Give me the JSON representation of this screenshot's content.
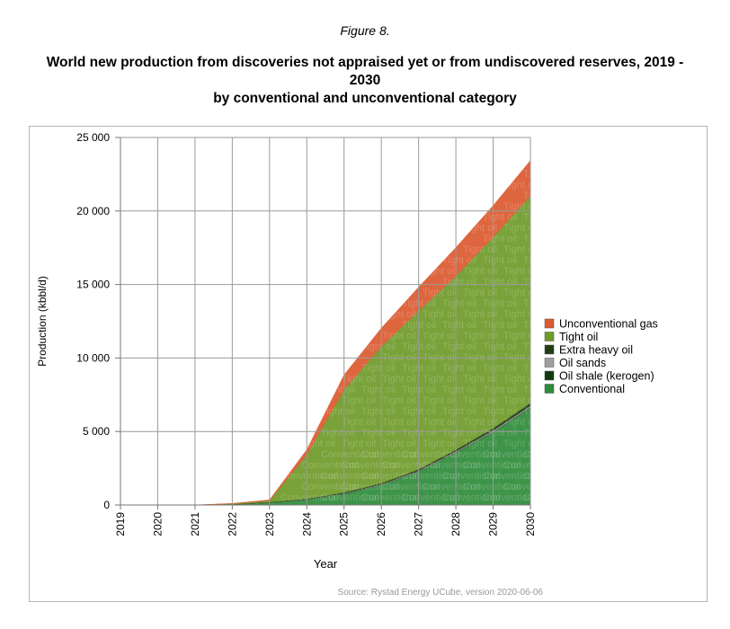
{
  "figure_label": "Figure 8.",
  "title_lines": [
    "World new production from discoveries not appraised yet or from undiscovered reserves, 2019 -",
    "2030",
    "by conventional and unconventional category"
  ],
  "source": "Source: Rystad Energy UCube, version 2020-06-06",
  "watermark": {
    "text": "Tight oil",
    "secondary": "Conventional"
  },
  "chart_data": {
    "type": "area",
    "stacked": true,
    "title": "World new production from discoveries not appraised yet or from undiscovered reserves, 2019 - 2030 by conventional and unconventional category",
    "xlabel": "Year",
    "ylabel": "Production (kbbl/d)",
    "x": [
      "2019",
      "2020",
      "2021",
      "2022",
      "2023",
      "2024",
      "2025",
      "2026",
      "2027",
      "2028",
      "2029",
      "2030"
    ],
    "ylim": [
      0,
      25000
    ],
    "yticks": [
      0,
      5000,
      10000,
      15000,
      20000,
      25000
    ],
    "ytick_labels": [
      "0",
      "5 000",
      "10 000",
      "15 000",
      "20 000",
      "25 000"
    ],
    "grid": true,
    "legend_position": "right",
    "series": [
      {
        "name": "Conventional",
        "color": "#2e8b3a",
        "values": [
          0,
          0,
          0,
          30,
          150,
          350,
          750,
          1350,
          2250,
          3550,
          4950,
          6600
        ]
      },
      {
        "name": "Oil shale (kerogen)",
        "color": "#0c3b10",
        "values": [
          0,
          0,
          0,
          2,
          5,
          8,
          12,
          15,
          20,
          25,
          30,
          35
        ]
      },
      {
        "name": "Oil sands",
        "color": "#9e9e9e",
        "values": [
          0,
          0,
          0,
          5,
          15,
          20,
          30,
          40,
          50,
          60,
          80,
          100
        ]
      },
      {
        "name": "Extra heavy oil",
        "color": "#1e3d14",
        "values": [
          0,
          0,
          0,
          10,
          30,
          40,
          60,
          80,
          100,
          130,
          160,
          200
        ]
      },
      {
        "name": "Tight oil",
        "color": "#6e9b2a",
        "values": [
          0,
          0,
          0,
          40,
          100,
          3000,
          7000,
          9300,
          10800,
          11800,
          13000,
          14100
        ]
      },
      {
        "name": "Unconventional gas",
        "color": "#dc5a2f",
        "values": [
          0,
          0,
          0,
          20,
          50,
          350,
          1000,
          1250,
          1600,
          1950,
          2150,
          2400
        ]
      }
    ],
    "legend_order": [
      "Unconventional gas",
      "Tight oil",
      "Extra heavy oil",
      "Oil sands",
      "Oil shale (kerogen)",
      "Conventional"
    ]
  }
}
